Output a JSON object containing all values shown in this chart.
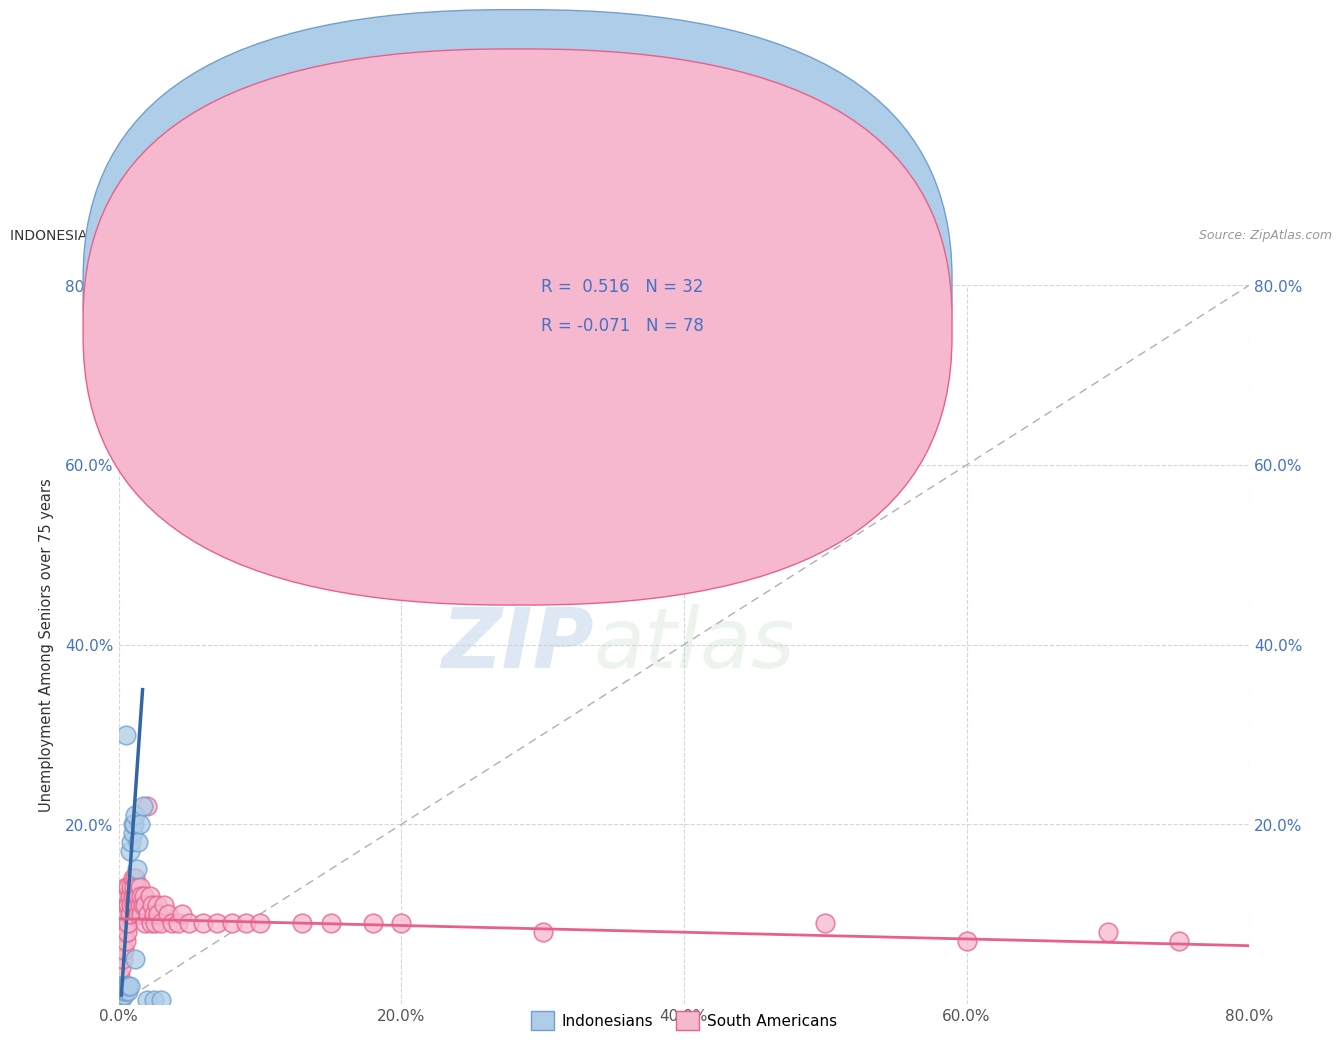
{
  "title": "INDONESIAN VS SOUTH AMERICAN UNEMPLOYMENT AMONG SENIORS OVER 75 YEARS CORRELATION CHART",
  "source": "Source: ZipAtlas.com",
  "ylabel": "Unemployment Among Seniors over 75 years",
  "xlim": [
    0,
    0.8
  ],
  "ylim": [
    0,
    0.8
  ],
  "xtick_vals": [
    0.0,
    0.2,
    0.4,
    0.6,
    0.8
  ],
  "xtick_labels": [
    "0.0%",
    "20.0%",
    "40.0%",
    "60.0%",
    "80.0%"
  ],
  "ytick_vals": [
    0.0,
    0.2,
    0.4,
    0.6,
    0.8
  ],
  "ytick_labels": [
    "",
    "20.0%",
    "40.0%",
    "60.0%",
    "80.0%"
  ],
  "right_ytick_labels": [
    "",
    "20.0%",
    "40.0%",
    "60.0%",
    "80.0%"
  ],
  "indonesian_line_color": "#3465a4",
  "indonesian_dot_color": "#729fcf",
  "indonesian_dot_fill": "#aecde8",
  "south_american_line_color": "#e8608a",
  "south_american_dot_color": "#e8608a",
  "south_american_dot_fill": "#f5b8cf",
  "R_indonesian": 0.516,
  "N_indonesian": 32,
  "R_south_american": -0.071,
  "N_south_american": 78,
  "watermark_ZIP": "ZIP",
  "watermark_atlas": "atlas",
  "background_color": "#ffffff",
  "grid_color": "#cccccc",
  "indonesian_points": [
    [
      0.001,
      0.005
    ],
    [
      0.001,
      0.01
    ],
    [
      0.001,
      0.015
    ],
    [
      0.002,
      0.005
    ],
    [
      0.002,
      0.02
    ],
    [
      0.003,
      0.01
    ],
    [
      0.003,
      0.015
    ],
    [
      0.003,
      0.02
    ],
    [
      0.004,
      0.01
    ],
    [
      0.004,
      0.015
    ],
    [
      0.005,
      0.02
    ],
    [
      0.005,
      0.015
    ],
    [
      0.006,
      0.02
    ],
    [
      0.007,
      0.015
    ],
    [
      0.007,
      0.02
    ],
    [
      0.008,
      0.02
    ],
    [
      0.008,
      0.17
    ],
    [
      0.009,
      0.18
    ],
    [
      0.01,
      0.19
    ],
    [
      0.01,
      0.2
    ],
    [
      0.011,
      0.2
    ],
    [
      0.012,
      0.21
    ],
    [
      0.012,
      0.05
    ],
    [
      0.013,
      0.15
    ],
    [
      0.014,
      0.18
    ],
    [
      0.015,
      0.2
    ],
    [
      0.017,
      0.22
    ],
    [
      0.02,
      0.005
    ],
    [
      0.025,
      0.005
    ],
    [
      0.03,
      0.005
    ],
    [
      0.005,
      0.3
    ],
    [
      0.009,
      0.64
    ]
  ],
  "south_american_points": [
    [
      0.001,
      0.03
    ],
    [
      0.001,
      0.05
    ],
    [
      0.001,
      0.07
    ],
    [
      0.001,
      0.09
    ],
    [
      0.002,
      0.04
    ],
    [
      0.002,
      0.06
    ],
    [
      0.002,
      0.08
    ],
    [
      0.002,
      0.1
    ],
    [
      0.003,
      0.05
    ],
    [
      0.003,
      0.07
    ],
    [
      0.003,
      0.09
    ],
    [
      0.003,
      0.11
    ],
    [
      0.004,
      0.06
    ],
    [
      0.004,
      0.08
    ],
    [
      0.004,
      0.1
    ],
    [
      0.004,
      0.12
    ],
    [
      0.005,
      0.07
    ],
    [
      0.005,
      0.09
    ],
    [
      0.005,
      0.11
    ],
    [
      0.005,
      0.13
    ],
    [
      0.006,
      0.08
    ],
    [
      0.006,
      0.1
    ],
    [
      0.006,
      0.12
    ],
    [
      0.007,
      0.09
    ],
    [
      0.007,
      0.11
    ],
    [
      0.007,
      0.13
    ],
    [
      0.008,
      0.1
    ],
    [
      0.008,
      0.12
    ],
    [
      0.009,
      0.11
    ],
    [
      0.009,
      0.13
    ],
    [
      0.01,
      0.12
    ],
    [
      0.01,
      0.14
    ],
    [
      0.011,
      0.11
    ],
    [
      0.011,
      0.13
    ],
    [
      0.012,
      0.12
    ],
    [
      0.012,
      0.14
    ],
    [
      0.013,
      0.11
    ],
    [
      0.013,
      0.13
    ],
    [
      0.014,
      0.1
    ],
    [
      0.014,
      0.12
    ],
    [
      0.015,
      0.11
    ],
    [
      0.015,
      0.13
    ],
    [
      0.016,
      0.1
    ],
    [
      0.016,
      0.12
    ],
    [
      0.017,
      0.11
    ],
    [
      0.018,
      0.12
    ],
    [
      0.019,
      0.09
    ],
    [
      0.019,
      0.11
    ],
    [
      0.02,
      0.22
    ],
    [
      0.021,
      0.1
    ],
    [
      0.022,
      0.12
    ],
    [
      0.023,
      0.09
    ],
    [
      0.024,
      0.11
    ],
    [
      0.025,
      0.1
    ],
    [
      0.026,
      0.09
    ],
    [
      0.027,
      0.11
    ],
    [
      0.028,
      0.1
    ],
    [
      0.03,
      0.09
    ],
    [
      0.032,
      0.11
    ],
    [
      0.035,
      0.1
    ],
    [
      0.038,
      0.09
    ],
    [
      0.042,
      0.09
    ],
    [
      0.045,
      0.1
    ],
    [
      0.05,
      0.09
    ],
    [
      0.06,
      0.09
    ],
    [
      0.07,
      0.09
    ],
    [
      0.08,
      0.09
    ],
    [
      0.09,
      0.09
    ],
    [
      0.1,
      0.09
    ],
    [
      0.13,
      0.09
    ],
    [
      0.15,
      0.09
    ],
    [
      0.18,
      0.09
    ],
    [
      0.2,
      0.09
    ],
    [
      0.3,
      0.08
    ],
    [
      0.5,
      0.09
    ],
    [
      0.6,
      0.07
    ],
    [
      0.7,
      0.08
    ],
    [
      0.75,
      0.07
    ]
  ]
}
